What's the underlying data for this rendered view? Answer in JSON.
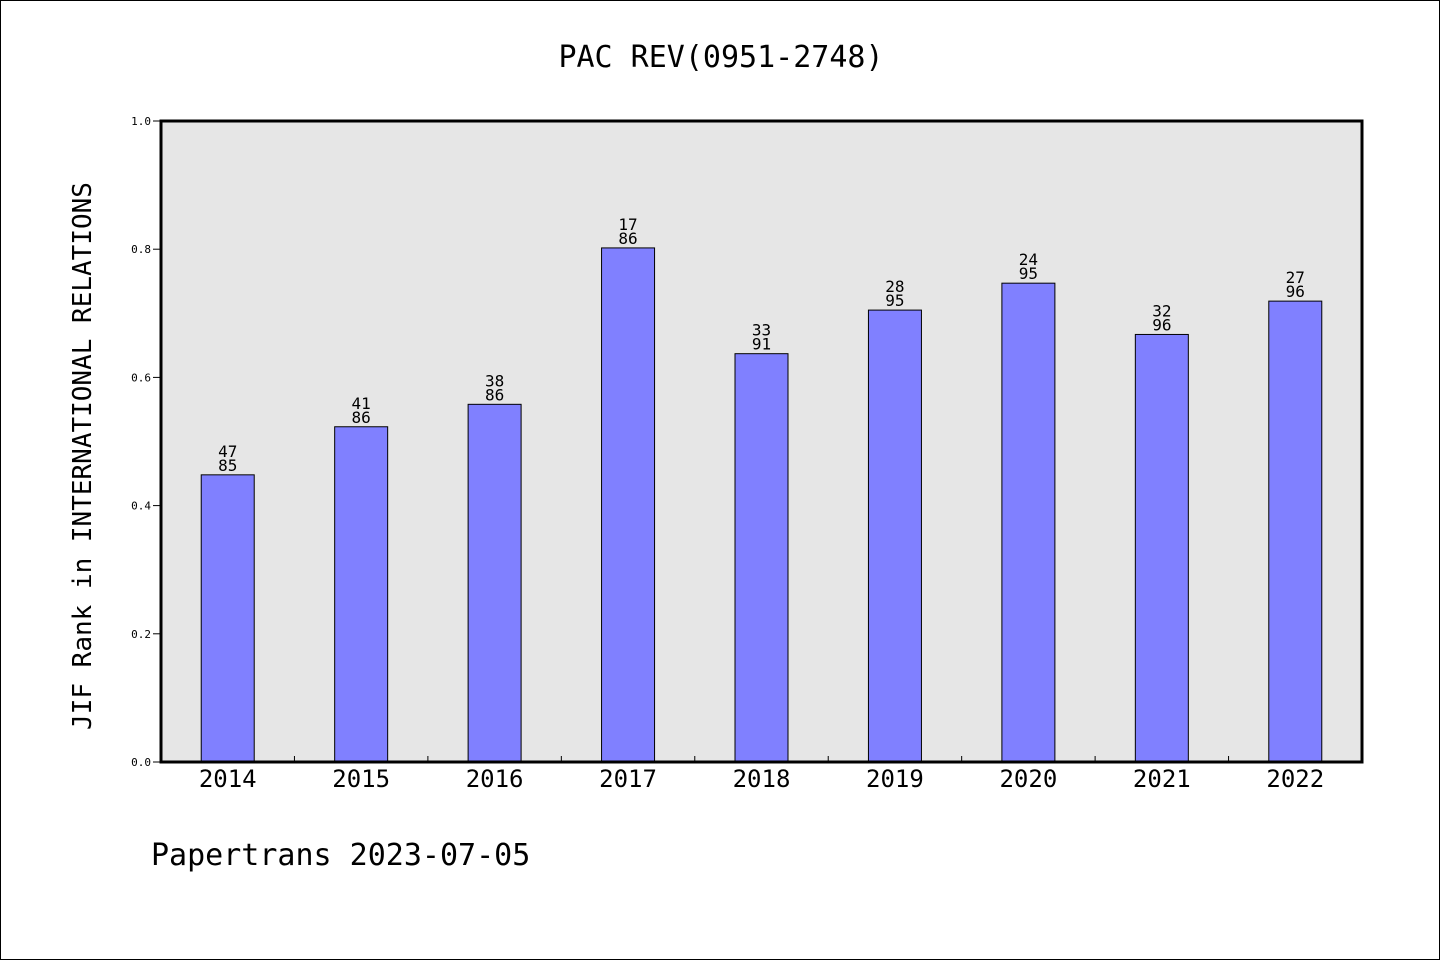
{
  "chart_data": {
    "type": "bar",
    "title": "PAC REV(0951-2748)",
    "xlabel": "",
    "ylabel": "JIF Rank in INTERNATIONAL RELATIONS",
    "ylim": [
      0,
      1.0
    ],
    "yticks": [
      "0.0",
      "0.2",
      "0.4",
      "0.6",
      "0.8",
      "1.0"
    ],
    "grid": false,
    "categories": [
      "2014",
      "2015",
      "2016",
      "2017",
      "2018",
      "2019",
      "2020",
      "2021",
      "2022"
    ],
    "values": [
      0.448,
      0.523,
      0.558,
      0.802,
      0.637,
      0.705,
      0.747,
      0.667,
      0.719
    ],
    "labels": [
      [
        "47",
        "85"
      ],
      [
        "41",
        "86"
      ],
      [
        "38",
        "86"
      ],
      [
        "17",
        "86"
      ],
      [
        "33",
        "91"
      ],
      [
        "28",
        "95"
      ],
      [
        "24",
        "95"
      ],
      [
        "32",
        "96"
      ],
      [
        "27",
        "96"
      ]
    ],
    "bar_color": "#8080ff",
    "plot_background": "#e6e6e6"
  },
  "footer": "Papertrans 2023-07-05"
}
